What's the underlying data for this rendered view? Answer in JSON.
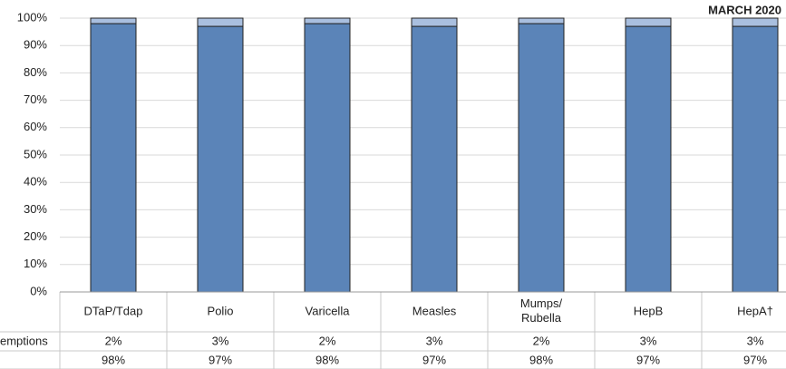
{
  "chart_data": {
    "type": "stacked_bar",
    "annotation": "MARCH 2020",
    "categories": [
      "DTaP/Tdap",
      "Polio",
      "Varicella",
      "Measles",
      "Mumps/\nRubella",
      "HepB",
      "HepA†"
    ],
    "series": [
      {
        "name": null,
        "color": "#5b84b8",
        "values": [
          98,
          97,
          98,
          97,
          98,
          97,
          97
        ],
        "value_labels": [
          "98%",
          "97%",
          "98%",
          "97%",
          "98%",
          "97%",
          "97%"
        ]
      },
      {
        "name": "emptions",
        "color": "#a9bfdf",
        "values": [
          2,
          3,
          2,
          3,
          2,
          3,
          3
        ],
        "value_labels": [
          "2%",
          "3%",
          "2%",
          "3%",
          "2%",
          "3%",
          "3%"
        ]
      }
    ],
    "ylim": [
      0,
      100
    ],
    "yticks": [
      {
        "value": 0,
        "label": "0%"
      },
      {
        "value": 10,
        "label": "10%"
      },
      {
        "value": 20,
        "label": "20%"
      },
      {
        "value": 30,
        "label": "30%"
      },
      {
        "value": 40,
        "label": "40%"
      },
      {
        "value": 50,
        "label": "50%"
      },
      {
        "value": 60,
        "label": "60%"
      },
      {
        "value": 70,
        "label": "70%"
      },
      {
        "value": 80,
        "label": "80%"
      },
      {
        "value": 90,
        "label": "90%"
      },
      {
        "value": 100,
        "label": "100%"
      }
    ],
    "grid": true
  }
}
